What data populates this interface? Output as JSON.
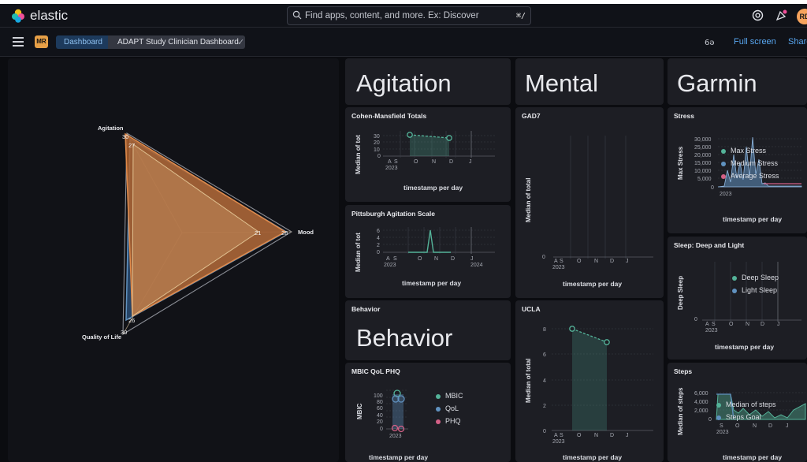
{
  "topbar": {
    "brand": "elastic",
    "search_placeholder": "Find apps, content, and more. Ex: Discover",
    "search_shortcut": "⌘/",
    "avatar": "RD"
  },
  "subbar": {
    "user_badge": "MR",
    "breadcrumb_root": "Dashboard",
    "breadcrumb_current": "ADAPT Study Clinician Dashboard",
    "fullscreen": "Full screen",
    "share": "Share"
  },
  "radar": {
    "labels": {
      "agitation": "Agitation",
      "mood": "Mood",
      "qol": "Quality of Life"
    },
    "values": {
      "agit_max": "30",
      "agit_inner": "27",
      "mood_inner": "21",
      "mood_max": "28",
      "qol_inner": "26",
      "qol_max": "30"
    }
  },
  "headers": {
    "agitation": "Agitation",
    "mental": "Mental",
    "garmin": "Garmin",
    "behavior_title": "Behavior",
    "behavior_big": "Behavior"
  },
  "cmt": {
    "title": "Cohen-Mansfield Totals",
    "ylabel": "Median of tot",
    "xlabel": "timestamp per day",
    "yticks": [
      "30",
      "20",
      "10",
      "0"
    ],
    "xticks": [
      "A",
      "S",
      "O",
      "N",
      "D",
      "J"
    ],
    "year": "2023"
  },
  "pas": {
    "title": "Pittsburgh Agitation Scale",
    "ylabel": "Median of tot",
    "xlabel": "timestamp per day",
    "yticks": [
      "6",
      "4",
      "2",
      "0"
    ],
    "xticks": [
      "A",
      "S",
      "O",
      "N",
      "D",
      "J"
    ],
    "year": "2023",
    "year2": "2024"
  },
  "mbic": {
    "title": "MBIC QoL PHQ",
    "ylabel": "MBIC",
    "xlabel": "timestamp per day",
    "yticks": [
      "100",
      "80",
      "60",
      "40",
      "20",
      "0"
    ],
    "year": "2023",
    "legend": [
      "MBIC",
      "QoL",
      "PHQ"
    ]
  },
  "gad7": {
    "title": "GAD7",
    "ylabel": "Median of total",
    "xlabel": "timestamp per day",
    "ytick0": "0",
    "xticks": [
      "A",
      "S",
      "O",
      "N",
      "D",
      "J"
    ],
    "year": "2023"
  },
  "ucla": {
    "title": "UCLA",
    "ylabel": "Median of total",
    "xlabel": "timestamp per day",
    "yticks": [
      "8",
      "6",
      "4",
      "2",
      "0"
    ],
    "xticks": [
      "A",
      "S",
      "O",
      "N",
      "D",
      "J"
    ],
    "year": "2023"
  },
  "stress": {
    "title": "Stress",
    "ylabel": "Max Stress",
    "xlabel": "timestamp per day",
    "yticks": [
      "30,000",
      "25,000",
      "20,000",
      "15,000",
      "10,000",
      "5,000",
      "0"
    ],
    "year": "2023",
    "legend": [
      "Max Stress",
      "Medium Stress",
      "Average Stress"
    ]
  },
  "sleep": {
    "title": "Sleep: Deep and Light",
    "ylabel": "Deep Sleep",
    "xlabel": "timestamp per day",
    "ytick0": "0",
    "xticks": [
      "A",
      "S",
      "O",
      "N",
      "D",
      "J"
    ],
    "year": "2023",
    "legend": [
      "Deep Sleep",
      "Light Sleep"
    ]
  },
  "steps": {
    "title": "Steps",
    "ylabel": "Median of steps",
    "xlabel": "timestamp per day",
    "yticks": [
      "6,000",
      "4,000",
      "2,000",
      "0"
    ],
    "xticks": [
      "S",
      "O",
      "N",
      "D",
      "J"
    ],
    "year": "2023",
    "legend": [
      "Median of steps",
      "Steps Goal"
    ]
  },
  "colors": {
    "teal": "#54b399",
    "blue": "#6092c0",
    "pink": "#d36086",
    "orange": "#b0612b"
  }
}
